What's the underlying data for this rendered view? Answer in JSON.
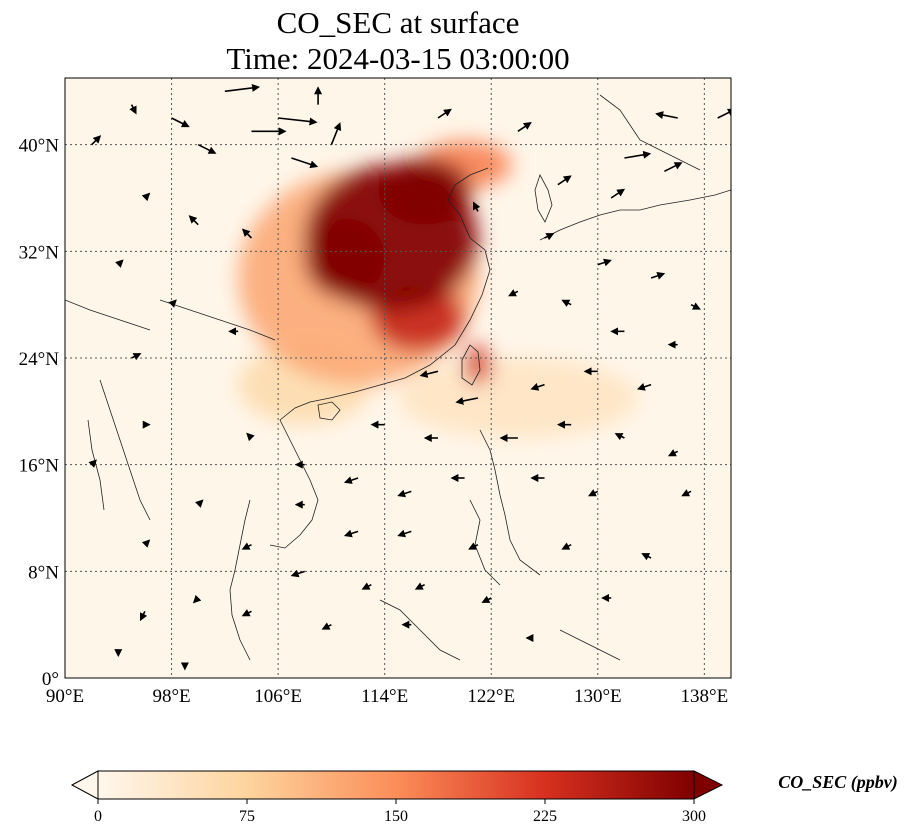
{
  "title": "CO_SEC at surface",
  "subtitle": "Time: 2024-03-15 03:00:00",
  "map": {
    "type": "filled-contour-map-with-wind-vectors",
    "region": {
      "lon_range": [
        90,
        140
      ],
      "lat_range": [
        0,
        45
      ]
    },
    "lon_ticks": [
      90,
      98,
      106,
      114,
      122,
      130,
      138
    ],
    "lon_tick_labels": [
      "90°E",
      "98°E",
      "106°E",
      "114°E",
      "122°E",
      "130°E",
      "138°E"
    ],
    "lat_ticks": [
      0,
      8,
      16,
      24,
      32,
      40
    ],
    "lat_tick_labels": [
      "0°",
      "8°N",
      "16°N",
      "24°N",
      "32°N",
      "40°N"
    ],
    "gridlines": "dotted",
    "coastlines": true,
    "colormap": "OrRd",
    "plume": [
      {
        "lon": 114.5,
        "lat": 33.0,
        "value": 300,
        "rlon": 6.5,
        "rlat": 5.5
      },
      {
        "lon": 117.0,
        "lat": 36.5,
        "value": 300,
        "rlon": 3.5,
        "rlat": 2.5
      },
      {
        "lon": 111.0,
        "lat": 31.5,
        "value": 290,
        "rlon": 3.0,
        "rlat": 3.0
      },
      {
        "lon": 116.5,
        "lat": 27.0,
        "value": 240,
        "rlon": 3.5,
        "rlat": 2.5
      },
      {
        "lon": 121.0,
        "lat": 23.5,
        "value": 230,
        "rlon": 1.0,
        "rlat": 1.5
      },
      {
        "lon": 120.0,
        "lat": 38.5,
        "value": 160,
        "rlon": 3.5,
        "rlat": 1.8
      },
      {
        "lon": 112.0,
        "lat": 30.0,
        "value": 120,
        "rlon": 9.0,
        "rlat": 8.0
      },
      {
        "lon": 124.0,
        "lat": 21.0,
        "value": 40,
        "rlon": 9.0,
        "rlat": 3.0
      },
      {
        "lon": 108.0,
        "lat": 22.0,
        "value": 60,
        "rlon": 5.0,
        "rlat": 3.0
      }
    ],
    "wind_vectors": [
      {
        "lon": 102,
        "lat": 44,
        "u": 8,
        "v": 1
      },
      {
        "lon": 106,
        "lat": 42,
        "u": 9,
        "v": -1
      },
      {
        "lon": 104,
        "lat": 41,
        "u": 8,
        "v": 0
      },
      {
        "lon": 107,
        "lat": 39,
        "u": 6,
        "v": -2
      },
      {
        "lon": 98,
        "lat": 42,
        "u": 4,
        "v": -2
      },
      {
        "lon": 100,
        "lat": 40,
        "u": 4,
        "v": -2
      },
      {
        "lon": 109,
        "lat": 43,
        "u": 0,
        "v": 4
      },
      {
        "lon": 110,
        "lat": 40,
        "u": 2,
        "v": 5
      },
      {
        "lon": 95,
        "lat": 43,
        "u": 1,
        "v": -2
      },
      {
        "lon": 92,
        "lat": 40,
        "u": 2,
        "v": 2
      },
      {
        "lon": 136,
        "lat": 42,
        "u": -5,
        "v": 1
      },
      {
        "lon": 132,
        "lat": 39,
        "u": 6,
        "v": 1
      },
      {
        "lon": 139,
        "lat": 42,
        "u": 4,
        "v": 2
      },
      {
        "lon": 127,
        "lat": 37,
        "u": 3,
        "v": 2
      },
      {
        "lon": 131,
        "lat": 36,
        "u": 3,
        "v": 2
      },
      {
        "lon": 135,
        "lat": 38,
        "u": 4,
        "v": 2
      },
      {
        "lon": 124,
        "lat": 41,
        "u": 3,
        "v": 2
      },
      {
        "lon": 118,
        "lat": 42,
        "u": 3,
        "v": 2
      },
      {
        "lon": 96,
        "lat": 36,
        "u": 1,
        "v": 1
      },
      {
        "lon": 100,
        "lat": 34,
        "u": -2,
        "v": 2
      },
      {
        "lon": 104,
        "lat": 33,
        "u": -2,
        "v": 2
      },
      {
        "lon": 94,
        "lat": 31,
        "u": 1,
        "v": 1
      },
      {
        "lon": 98,
        "lat": 28,
        "u": 1,
        "v": 1
      },
      {
        "lon": 103,
        "lat": 26,
        "u": -2,
        "v": 0
      },
      {
        "lon": 95,
        "lat": 24,
        "u": 2,
        "v": 1
      },
      {
        "lon": 121,
        "lat": 35,
        "u": -1,
        "v": 2
      },
      {
        "lon": 126,
        "lat": 33,
        "u": 2,
        "v": 1
      },
      {
        "lon": 130,
        "lat": 31,
        "u": 3,
        "v": 1
      },
      {
        "lon": 134,
        "lat": 30,
        "u": 3,
        "v": 1
      },
      {
        "lon": 137,
        "lat": 28,
        "u": 2,
        "v": -1
      },
      {
        "lon": 124,
        "lat": 29,
        "u": -2,
        "v": -1
      },
      {
        "lon": 128,
        "lat": 28,
        "u": -2,
        "v": 1
      },
      {
        "lon": 132,
        "lat": 26,
        "u": -3,
        "v": 0
      },
      {
        "lon": 136,
        "lat": 25,
        "u": -2,
        "v": 0
      },
      {
        "lon": 118,
        "lat": 23,
        "u": -4,
        "v": -1
      },
      {
        "lon": 121,
        "lat": 21,
        "u": -5,
        "v": -1
      },
      {
        "lon": 126,
        "lat": 22,
        "u": -3,
        "v": -1
      },
      {
        "lon": 130,
        "lat": 23,
        "u": -3,
        "v": 0
      },
      {
        "lon": 134,
        "lat": 22,
        "u": -3,
        "v": -1
      },
      {
        "lon": 114,
        "lat": 19,
        "u": -3,
        "v": 0
      },
      {
        "lon": 118,
        "lat": 18,
        "u": -3,
        "v": 0
      },
      {
        "lon": 124,
        "lat": 18,
        "u": -4,
        "v": 0
      },
      {
        "lon": 128,
        "lat": 19,
        "u": -3,
        "v": 0
      },
      {
        "lon": 132,
        "lat": 18,
        "u": -2,
        "v": 1
      },
      {
        "lon": 136,
        "lat": 17,
        "u": -2,
        "v": -1
      },
      {
        "lon": 112,
        "lat": 15,
        "u": -3,
        "v": -1
      },
      {
        "lon": 116,
        "lat": 14,
        "u": -3,
        "v": -1
      },
      {
        "lon": 120,
        "lat": 15,
        "u": -3,
        "v": 0
      },
      {
        "lon": 126,
        "lat": 15,
        "u": -3,
        "v": 0
      },
      {
        "lon": 130,
        "lat": 14,
        "u": -2,
        "v": -1
      },
      {
        "lon": 137,
        "lat": 14,
        "u": -2,
        "v": -1
      },
      {
        "lon": 108,
        "lat": 13,
        "u": -2,
        "v": 0
      },
      {
        "lon": 112,
        "lat": 11,
        "u": -3,
        "v": -1
      },
      {
        "lon": 116,
        "lat": 11,
        "u": -3,
        "v": -1
      },
      {
        "lon": 121,
        "lat": 10,
        "u": -2,
        "v": -1
      },
      {
        "lon": 128,
        "lat": 10,
        "u": -2,
        "v": -1
      },
      {
        "lon": 104,
        "lat": 10,
        "u": -2,
        "v": -1
      },
      {
        "lon": 108,
        "lat": 8,
        "u": -3,
        "v": -1
      },
      {
        "lon": 113,
        "lat": 7,
        "u": -2,
        "v": -1
      },
      {
        "lon": 117,
        "lat": 7,
        "u": -2,
        "v": -1
      },
      {
        "lon": 122,
        "lat": 6,
        "u": -2,
        "v": -1
      },
      {
        "lon": 100,
        "lat": 6,
        "u": -1,
        "v": -1
      },
      {
        "lon": 96,
        "lat": 5,
        "u": -1,
        "v": -2
      },
      {
        "lon": 104,
        "lat": 5,
        "u": -2,
        "v": -1
      },
      {
        "lon": 110,
        "lat": 4,
        "u": -2,
        "v": -1
      },
      {
        "lon": 116,
        "lat": 4,
        "u": -2,
        "v": 0
      },
      {
        "lon": 96,
        "lat": 10,
        "u": 1,
        "v": 1
      },
      {
        "lon": 100,
        "lat": 13,
        "u": 1,
        "v": 1
      },
      {
        "lon": 92,
        "lat": 16,
        "u": 1,
        "v": 1
      },
      {
        "lon": 96,
        "lat": 19,
        "u": 1,
        "v": 0
      },
      {
        "lon": 104,
        "lat": 18,
        "u": -1,
        "v": 1
      },
      {
        "lon": 108,
        "lat": 16,
        "u": -2,
        "v": 0
      },
      {
        "lon": 94,
        "lat": 2,
        "u": 0,
        "v": -1
      },
      {
        "lon": 99,
        "lat": 1,
        "u": 0,
        "v": -1
      },
      {
        "lon": 125,
        "lat": 3,
        "u": -1,
        "v": 0
      },
      {
        "lon": 131,
        "lat": 6,
        "u": -2,
        "v": 0
      },
      {
        "lon": 134,
        "lat": 9,
        "u": -2,
        "v": 1
      }
    ],
    "colorbar": {
      "min": 0,
      "max": 300,
      "ticks": [
        0,
        75,
        150,
        225,
        300
      ],
      "tick_labels": [
        "0",
        "75",
        "150",
        "225",
        "300"
      ],
      "label": "CO_SEC (ppbv)",
      "extend": "both"
    }
  }
}
